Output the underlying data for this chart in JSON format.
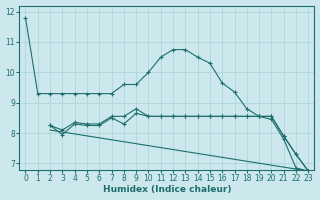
{
  "xlabel": "Humidex (Indice chaleur)",
  "bg_color": "#cce8ec",
  "grid_color": "#a8d4d8",
  "line_color": "#1e6e6e",
  "xlim": [
    -0.5,
    23.5
  ],
  "ylim": [
    6.8,
    12.2
  ],
  "yticks": [
    7,
    8,
    9,
    10,
    11,
    12
  ],
  "xticks": [
    0,
    1,
    2,
    3,
    4,
    5,
    6,
    7,
    8,
    9,
    10,
    11,
    12,
    13,
    14,
    15,
    16,
    17,
    18,
    19,
    20,
    21,
    22,
    23
  ],
  "series": [
    {
      "x": [
        0,
        1,
        2,
        3,
        4,
        5,
        6,
        7,
        8,
        9,
        10,
        11,
        12,
        13,
        14,
        15,
        16,
        17,
        18,
        19,
        20,
        21,
        22,
        23
      ],
      "y": [
        11.8,
        9.3,
        9.3,
        9.3,
        9.3,
        9.3,
        9.3,
        9.3,
        9.6,
        9.6,
        10.0,
        10.5,
        10.75,
        10.75,
        10.5,
        10.3,
        9.65,
        9.35,
        8.8,
        8.55,
        8.45,
        7.8,
        6.85,
        6.75
      ],
      "markers": true
    },
    {
      "x": [
        2,
        3,
        4,
        5,
        6,
        7,
        8,
        9,
        10,
        11,
        12,
        13,
        14,
        15,
        16,
        17,
        18,
        19,
        20,
        21,
        22,
        23
      ],
      "y": [
        8.25,
        8.1,
        8.35,
        8.3,
        8.3,
        8.55,
        8.55,
        8.8,
        8.55,
        8.55,
        8.55,
        8.55,
        8.55,
        8.55,
        8.55,
        8.55,
        8.55,
        8.55,
        8.55,
        7.9,
        7.3,
        6.75
      ],
      "markers": true
    },
    {
      "x": [
        2,
        3,
        4,
        5,
        6,
        7,
        8,
        9,
        10,
        11,
        12,
        13,
        14,
        15,
        16,
        17,
        18,
        19,
        20,
        21,
        22,
        23
      ],
      "y": [
        8.25,
        7.95,
        8.3,
        8.25,
        8.25,
        8.5,
        8.3,
        8.65,
        8.55,
        8.55,
        8.55,
        8.55,
        8.55,
        8.55,
        8.55,
        8.55,
        8.55,
        8.55,
        8.55,
        7.9,
        7.3,
        6.75
      ],
      "markers": true
    },
    {
      "x": [
        2,
        23
      ],
      "y": [
        8.1,
        6.75
      ],
      "markers": false
    }
  ]
}
